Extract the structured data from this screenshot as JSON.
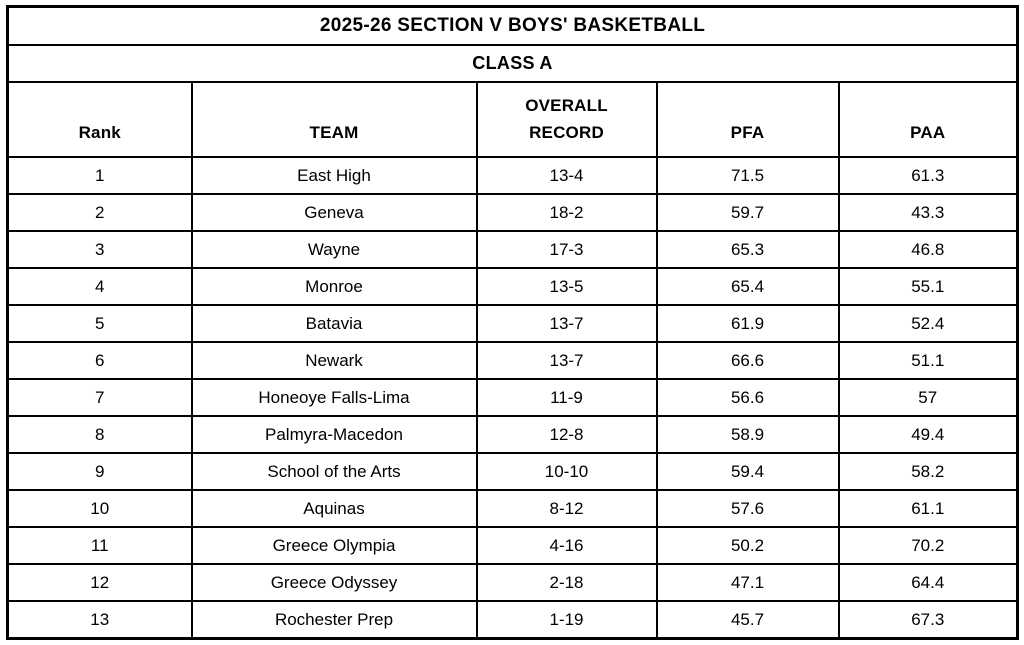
{
  "title": "2025-26 SECTION V BOYS' BASKETBALL",
  "subtitle": "CLASS A",
  "ui": {
    "header_labels": [
      "Rank",
      "TEAM",
      "OVERALL\nRECORD",
      "PFA",
      "PAA"
    ],
    "column_keys": [
      "rank",
      "team",
      "record",
      "pfa",
      "paa"
    ]
  },
  "colors": {
    "border": "#000000",
    "background": "#ffffff",
    "text": "#000000"
  },
  "chart_data": {
    "type": "table",
    "title": "2025-26 SECTION V BOYS' BASKETBALL",
    "subtitle": "CLASS A",
    "columns": [
      "Rank",
      "TEAM",
      "OVERALL RECORD",
      "PFA",
      "PAA"
    ],
    "rows": [
      [
        "1",
        "East High",
        "13-4",
        "71.5",
        "61.3"
      ],
      [
        "2",
        "Geneva",
        "18-2",
        "59.7",
        "43.3"
      ],
      [
        "3",
        "Wayne",
        "17-3",
        "65.3",
        "46.8"
      ],
      [
        "4",
        "Monroe",
        "13-5",
        "65.4",
        "55.1"
      ],
      [
        "5",
        "Batavia",
        "13-7",
        "61.9",
        "52.4"
      ],
      [
        "6",
        "Newark",
        "13-7",
        "66.6",
        "51.1"
      ],
      [
        "7",
        "Honeoye Falls-Lima",
        "11-9",
        "56.6",
        "57"
      ],
      [
        "8",
        "Palmyra-Macedon",
        "12-8",
        "58.9",
        "49.4"
      ],
      [
        "9",
        "School of the Arts",
        "10-10",
        "59.4",
        "58.2"
      ],
      [
        "10",
        "Aquinas",
        "8-12",
        "57.6",
        "61.1"
      ],
      [
        "11",
        "Greece Olympia",
        "4-16",
        "50.2",
        "70.2"
      ],
      [
        "12",
        "Greece Odyssey",
        "2-18",
        "47.1",
        "64.4"
      ],
      [
        "13",
        "Rochester Prep",
        "1-19",
        "45.7",
        "67.3"
      ]
    ]
  }
}
